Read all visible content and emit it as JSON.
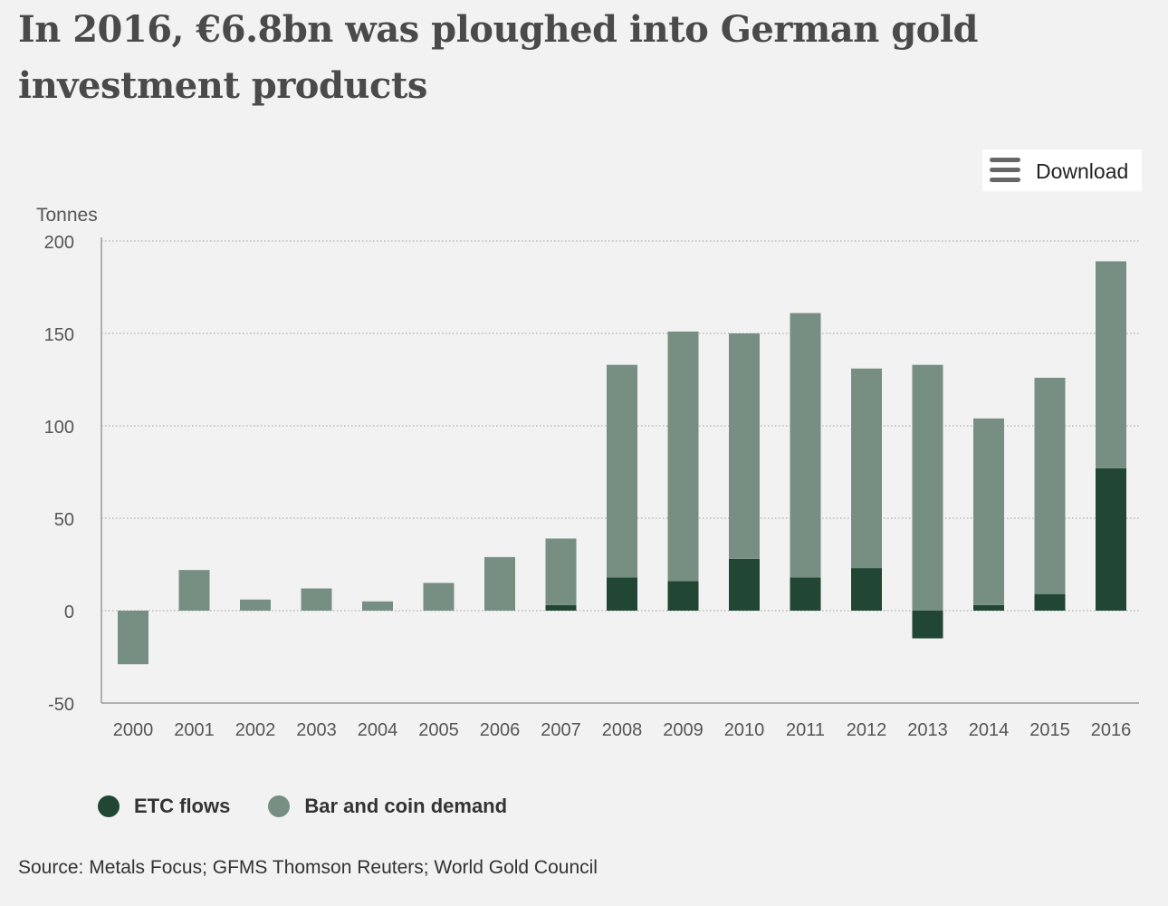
{
  "title": "In 2016, €6.8bn was ploughed into German gold investment products",
  "download": {
    "label": "Download"
  },
  "source": "Source: Metals Focus; GFMS Thomson Reuters; World Gold Council",
  "colors": {
    "etc": "#214634",
    "bar_coin": "#778f83",
    "background": "#f2f2f2",
    "grid": "#b0b0b0",
    "axis": "#999999"
  },
  "chart_data": {
    "type": "bar",
    "stacked": true,
    "ylabel": "Tonnes",
    "ylim": [
      -50,
      200
    ],
    "yticks": [
      200,
      150,
      100,
      50,
      0,
      -50
    ],
    "categories": [
      "2000",
      "2001",
      "2002",
      "2003",
      "2004",
      "2005",
      "2006",
      "2007",
      "2008",
      "2009",
      "2010",
      "2011",
      "2012",
      "2013",
      "2014",
      "2015",
      "2016"
    ],
    "series": [
      {
        "name": "ETC flows",
        "color": "#214634",
        "values": [
          0,
          0,
          0,
          0,
          0,
          0,
          0,
          3,
          18,
          16,
          28,
          18,
          23,
          -15,
          3,
          9,
          77
        ]
      },
      {
        "name": "Bar and coin demand",
        "color": "#778f83",
        "values": [
          -29,
          22,
          6,
          12,
          5,
          15,
          29,
          36,
          115,
          135,
          122,
          143,
          108,
          133,
          101,
          117,
          112
        ]
      }
    ],
    "grid": "horizontal-dotted",
    "legend_position": "bottom-left"
  }
}
